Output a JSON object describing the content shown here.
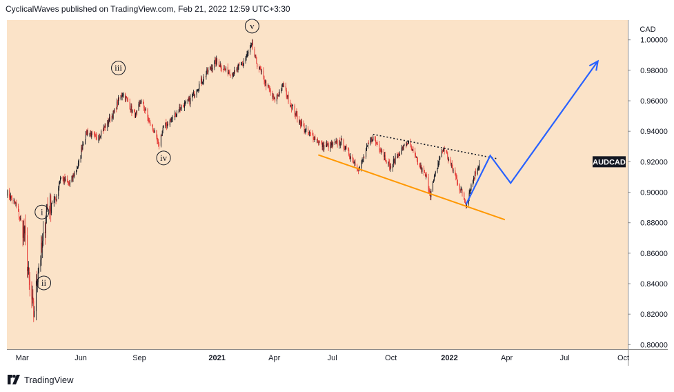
{
  "header": {
    "attribution": "CyclicalWaves published on TradingView.com, Feb 21, 2022 12:59 UTC+3:30"
  },
  "footer": {
    "brand": "TradingView",
    "logo_icon": "tradingview-logo-icon"
  },
  "chart_data": {
    "type": "candlestick",
    "symbol": "AUDCAD",
    "currency": "CAD",
    "y_axis": {
      "ticks": [
        "1.00000",
        "0.98000",
        "0.96000",
        "0.94000",
        "0.92000",
        "0.90000",
        "0.88000",
        "0.86000",
        "0.84000",
        "0.82000",
        "0.80000"
      ],
      "ylim": [
        0.797,
        1.013
      ]
    },
    "x_axis": {
      "ticks": [
        {
          "label": "Mar",
          "date": "2020-03-01",
          "bold": false
        },
        {
          "label": "Jun",
          "date": "2020-06-01",
          "bold": false
        },
        {
          "label": "Sep",
          "date": "2020-09-01",
          "bold": false
        },
        {
          "label": "2021",
          "date": "2021-01-01",
          "bold": true
        },
        {
          "label": "Apr",
          "date": "2021-04-01",
          "bold": false
        },
        {
          "label": "Jul",
          "date": "2021-07-01",
          "bold": false
        },
        {
          "label": "Oct",
          "date": "2021-10-01",
          "bold": false
        },
        {
          "label": "2022",
          "date": "2022-01-01",
          "bold": true
        },
        {
          "label": "Apr",
          "date": "2022-04-01",
          "bold": false
        },
        {
          "label": "Jul",
          "date": "2022-07-01",
          "bold": false
        },
        {
          "label": "Oct",
          "date": "2022-10-01",
          "bold": false
        }
      ],
      "xlim": [
        "2020-02-06",
        "2022-10-08"
      ]
    },
    "price_label": {
      "text": "AUDCAD",
      "value": 0.92
    },
    "price_path": [
      [
        "2020-02-06",
        0.9
      ],
      [
        "2020-02-20",
        0.892
      ],
      [
        "2020-03-05",
        0.872
      ],
      [
        "2020-03-12",
        0.84
      ],
      [
        "2020-03-19",
        0.82
      ],
      [
        "2020-03-26",
        0.85
      ],
      [
        "2020-04-02",
        0.865
      ],
      [
        "2020-04-09",
        0.89
      ],
      [
        "2020-04-16",
        0.893
      ],
      [
        "2020-04-23",
        0.896
      ],
      [
        "2020-04-30",
        0.91
      ],
      [
        "2020-05-14",
        0.905
      ],
      [
        "2020-05-28",
        0.918
      ],
      [
        "2020-06-04",
        0.932
      ],
      [
        "2020-06-11",
        0.94
      ],
      [
        "2020-06-25",
        0.935
      ],
      [
        "2020-07-09",
        0.943
      ],
      [
        "2020-07-23",
        0.952
      ],
      [
        "2020-07-30",
        0.96
      ],
      [
        "2020-08-06",
        0.965
      ],
      [
        "2020-08-13",
        0.96
      ],
      [
        "2020-08-20",
        0.954
      ],
      [
        "2020-08-27",
        0.95
      ],
      [
        "2020-09-03",
        0.96
      ],
      [
        "2020-09-10",
        0.954
      ],
      [
        "2020-09-17",
        0.945
      ],
      [
        "2020-09-24",
        0.94
      ],
      [
        "2020-10-01",
        0.93
      ],
      [
        "2020-10-08",
        0.942
      ],
      [
        "2020-10-22",
        0.948
      ],
      [
        "2020-11-05",
        0.956
      ],
      [
        "2020-11-19",
        0.96
      ],
      [
        "2020-12-03",
        0.97
      ],
      [
        "2020-12-17",
        0.979
      ],
      [
        "2020-12-31",
        0.986
      ],
      [
        "2021-01-14",
        0.98
      ],
      [
        "2021-01-28",
        0.978
      ],
      [
        "2021-02-11",
        0.985
      ],
      [
        "2021-02-25",
        0.996
      ],
      [
        "2021-03-04",
        0.985
      ],
      [
        "2021-03-18",
        0.972
      ],
      [
        "2021-04-01",
        0.96
      ],
      [
        "2021-04-15",
        0.97
      ],
      [
        "2021-04-22",
        0.962
      ],
      [
        "2021-05-06",
        0.95
      ],
      [
        "2021-05-20",
        0.94
      ],
      [
        "2021-06-03",
        0.936
      ],
      [
        "2021-06-17",
        0.93
      ],
      [
        "2021-07-01",
        0.931
      ],
      [
        "2021-07-15",
        0.933
      ],
      [
        "2021-07-29",
        0.924
      ],
      [
        "2021-08-12",
        0.915
      ],
      [
        "2021-08-26",
        0.93
      ],
      [
        "2021-09-02",
        0.936
      ],
      [
        "2021-09-16",
        0.928
      ],
      [
        "2021-09-30",
        0.916
      ],
      [
        "2021-10-14",
        0.926
      ],
      [
        "2021-10-28",
        0.933
      ],
      [
        "2021-11-11",
        0.92
      ],
      [
        "2021-11-25",
        0.91
      ],
      [
        "2021-12-02",
        0.899
      ],
      [
        "2021-12-16",
        0.922
      ],
      [
        "2021-12-23",
        0.929
      ],
      [
        "2022-01-06",
        0.915
      ],
      [
        "2022-01-20",
        0.9
      ],
      [
        "2022-01-27",
        0.892
      ],
      [
        "2022-02-03",
        0.903
      ],
      [
        "2022-02-10",
        0.912
      ],
      [
        "2022-02-17",
        0.919
      ]
    ],
    "wave_labels": [
      {
        "text": "i",
        "date": "2020-04-01",
        "value": 0.887
      },
      {
        "text": "ii",
        "date": "2020-04-04",
        "value": 0.8405
      },
      {
        "text": "iii",
        "date": "2020-07-30",
        "value": 0.9815
      },
      {
        "text": "iv",
        "date": "2020-10-09",
        "value": 0.9225
      },
      {
        "text": "v",
        "date": "2021-02-25",
        "value": 1.009
      }
    ],
    "support_line": {
      "color": "#ff9800",
      "start": [
        "2021-06-09",
        0.9245
      ],
      "end": [
        "2022-03-29",
        0.882
      ]
    },
    "resistance_line": {
      "color": "#131722",
      "style": "dotted",
      "start": [
        "2021-09-03",
        0.938
      ],
      "end": [
        "2022-03-17",
        0.922
      ]
    },
    "projection": {
      "color": "#2962ff",
      "points": [
        [
          "2022-01-27",
          0.892
        ],
        [
          "2022-03-06",
          0.924
        ],
        [
          "2022-04-07",
          0.906
        ],
        [
          "2022-08-22",
          0.986
        ]
      ]
    },
    "colors": {
      "up": "#131722",
      "down": "#e53935",
      "plot_background": "#fbe3c8"
    }
  }
}
